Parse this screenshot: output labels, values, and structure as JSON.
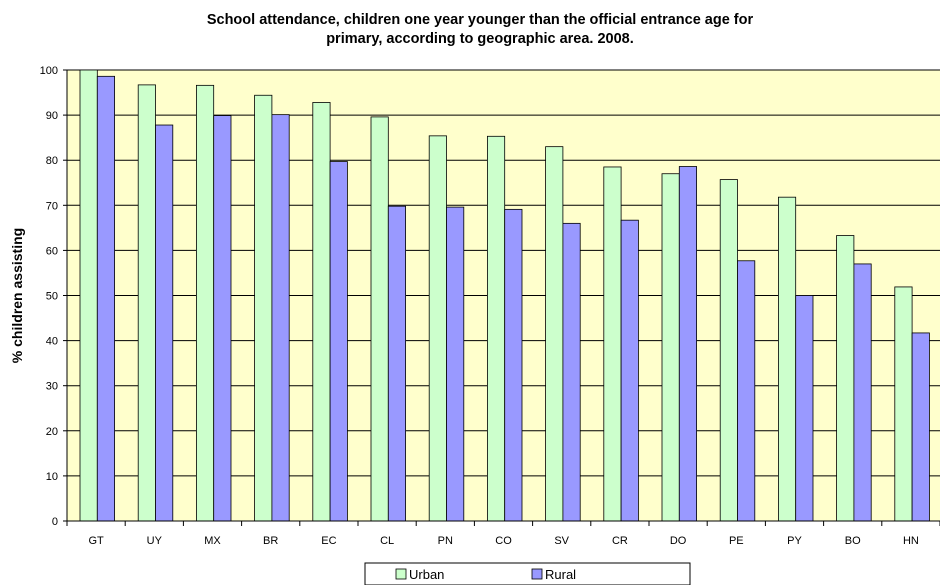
{
  "chart_data": {
    "type": "bar",
    "title_lines": [
      "School attendance, children one year younger than the official entrance age for",
      "primary, according to geographic area. 2008."
    ],
    "xlabel": "",
    "ylabel": "% children assisting",
    "ylim": [
      0,
      100
    ],
    "yticks": [
      0,
      10,
      20,
      30,
      40,
      50,
      60,
      70,
      80,
      90,
      100
    ],
    "grid": true,
    "legend_position": "bottom",
    "categories": [
      "GT",
      "UY",
      "MX",
      "BR",
      "EC",
      "CL",
      "PN",
      "CO",
      "SV",
      "CR",
      "DO",
      "PE",
      "PY",
      "BO",
      "HN"
    ],
    "series": [
      {
        "name": "Urban",
        "color": "#ccffcc",
        "values": [
          100.0,
          96.7,
          96.6,
          94.4,
          92.8,
          89.6,
          85.4,
          85.3,
          83.0,
          78.5,
          77.0,
          75.7,
          71.8,
          63.3,
          51.9
        ]
      },
      {
        "name": "Rural",
        "color": "#9999ff",
        "values": [
          98.6,
          87.8,
          89.9,
          90.1,
          79.7,
          69.8,
          69.6,
          69.1,
          66.0,
          66.7,
          78.6,
          57.7,
          50.0,
          57.0,
          41.7
        ]
      }
    ],
    "colors": {
      "plot_background": "#ffffcc",
      "gridline": "#000000",
      "bar_border": "#000000"
    }
  }
}
